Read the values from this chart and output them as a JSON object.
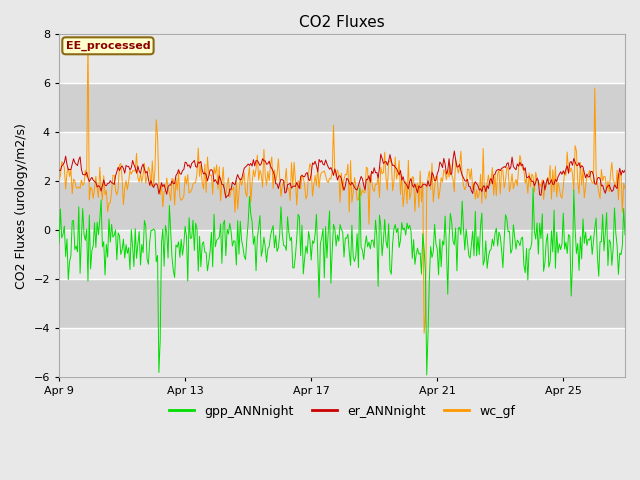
{
  "title": "CO2 Fluxes",
  "ylabel": "CO2 Fluxes (urology/m2/s)",
  "xlabel": "",
  "ylim": [
    -6,
    8
  ],
  "background_color": "#e8e8e8",
  "plot_bg_color": "#e8e8e8",
  "band_light": "#e8e8e8",
  "band_dark": "#d0d0d0",
  "annotation_text": "EE_processed",
  "annotation_color": "#8b0000",
  "annotation_bg": "#ffffcc",
  "annotation_edge": "#8b6914",
  "series": {
    "gpp_ANNnight": {
      "color": "#00dd00",
      "label": "gpp_ANNnight"
    },
    "er_ANNnight": {
      "color": "#cc0000",
      "label": "er_ANNnight"
    },
    "wc_gf": {
      "color": "#ff9900",
      "label": "wc_gf"
    }
  },
  "xtick_labels": [
    "Apr 9",
    "Apr 13",
    "Apr 17",
    "Apr 21",
    "Apr 25"
  ],
  "xtick_positions": [
    0,
    96,
    192,
    288,
    384
  ],
  "n_points": 432,
  "seed": 42,
  "linewidth": 0.7,
  "title_fontsize": 11,
  "axis_label_fontsize": 9,
  "tick_fontsize": 8,
  "legend_fontsize": 9
}
